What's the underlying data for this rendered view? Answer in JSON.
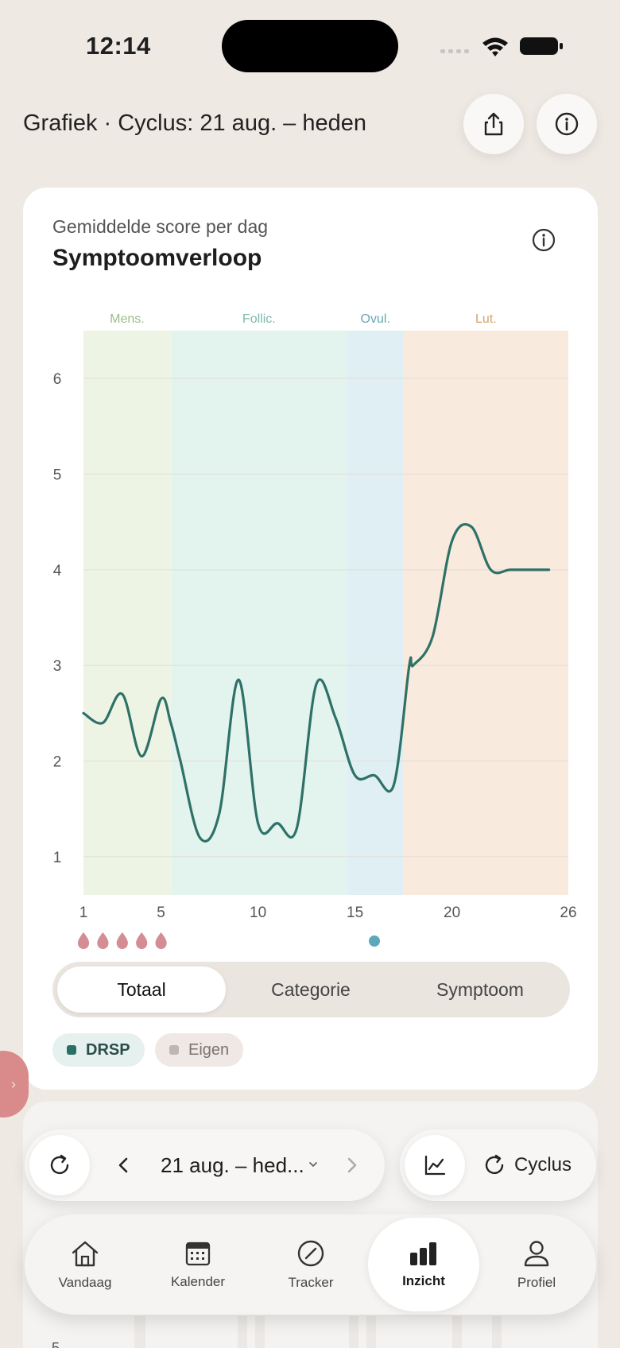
{
  "status": {
    "time": "12:14"
  },
  "header": {
    "title": "Grafiek · Cyclus: 21 aug. – heden"
  },
  "card": {
    "subtitle": "Gemiddelde score per dag",
    "title": "Symptoomverloop"
  },
  "chart_data": {
    "type": "line",
    "phases": [
      {
        "label": "Mens.",
        "from": 1,
        "to": 5.5,
        "color": "#eef4e4",
        "label_color": "#9cbf84"
      },
      {
        "label": "Follic.",
        "from": 5.5,
        "to": 14.6,
        "color": "#e3f3ee",
        "label_color": "#7fb8ac"
      },
      {
        "label": "Ovul.",
        "from": 14.6,
        "to": 17.5,
        "color": "#e0eff3",
        "label_color": "#6aa7b6"
      },
      {
        "label": "Lut.",
        "from": 17.5,
        "to": 26,
        "color": "#f8eadd",
        "label_color": "#d2a36b"
      }
    ],
    "series": [
      {
        "color": "#2e7168",
        "x": [
          1,
          2,
          3,
          4,
          5,
          5.5,
          6,
          7,
          8,
          9,
          10,
          11,
          12,
          13,
          14,
          15,
          16,
          17,
          17.8,
          18,
          19,
          20,
          21,
          22,
          23,
          24,
          25
        ],
        "y": [
          2.5,
          2.4,
          2.7,
          2.05,
          2.65,
          2.4,
          2.0,
          1.2,
          1.45,
          2.85,
          1.35,
          1.35,
          1.3,
          2.8,
          2.45,
          1.85,
          1.85,
          1.75,
          3.0,
          3.0,
          3.3,
          4.3,
          4.45,
          4.0,
          4.0,
          4.0,
          4.0
        ]
      }
    ],
    "xlim": [
      1,
      26
    ],
    "ylim": [
      0.6,
      6.5
    ],
    "x_ticks": [
      1,
      5,
      10,
      15,
      20,
      26
    ],
    "y_ticks": [
      1,
      2,
      3,
      4,
      5,
      6
    ],
    "grid": true,
    "bleeding_days": [
      1,
      2,
      3,
      4,
      5
    ],
    "ovulation_day": 16,
    "bleeding_color": "#d48e93",
    "ovulation_color": "#5aa9b8"
  },
  "segments": {
    "items": [
      "Totaal",
      "Categorie",
      "Symptoom"
    ],
    "active": "Totaal"
  },
  "chips": {
    "drsp": "DRSP",
    "eigen": "Eigen"
  },
  "range": {
    "label": "21 aug. – hed..."
  },
  "view": {
    "cycle_label": "Cyclus"
  },
  "card2": {
    "axis_value": "5"
  },
  "nav": {
    "items": [
      {
        "label": "Vandaag",
        "icon": "house-icon"
      },
      {
        "label": "Kalender",
        "icon": "calendar-icon"
      },
      {
        "label": "Tracker",
        "icon": "tracker-icon"
      },
      {
        "label": "Inzicht",
        "icon": "bar-chart-icon"
      },
      {
        "label": "Profiel",
        "icon": "person-icon"
      }
    ],
    "active": "Inzicht"
  }
}
